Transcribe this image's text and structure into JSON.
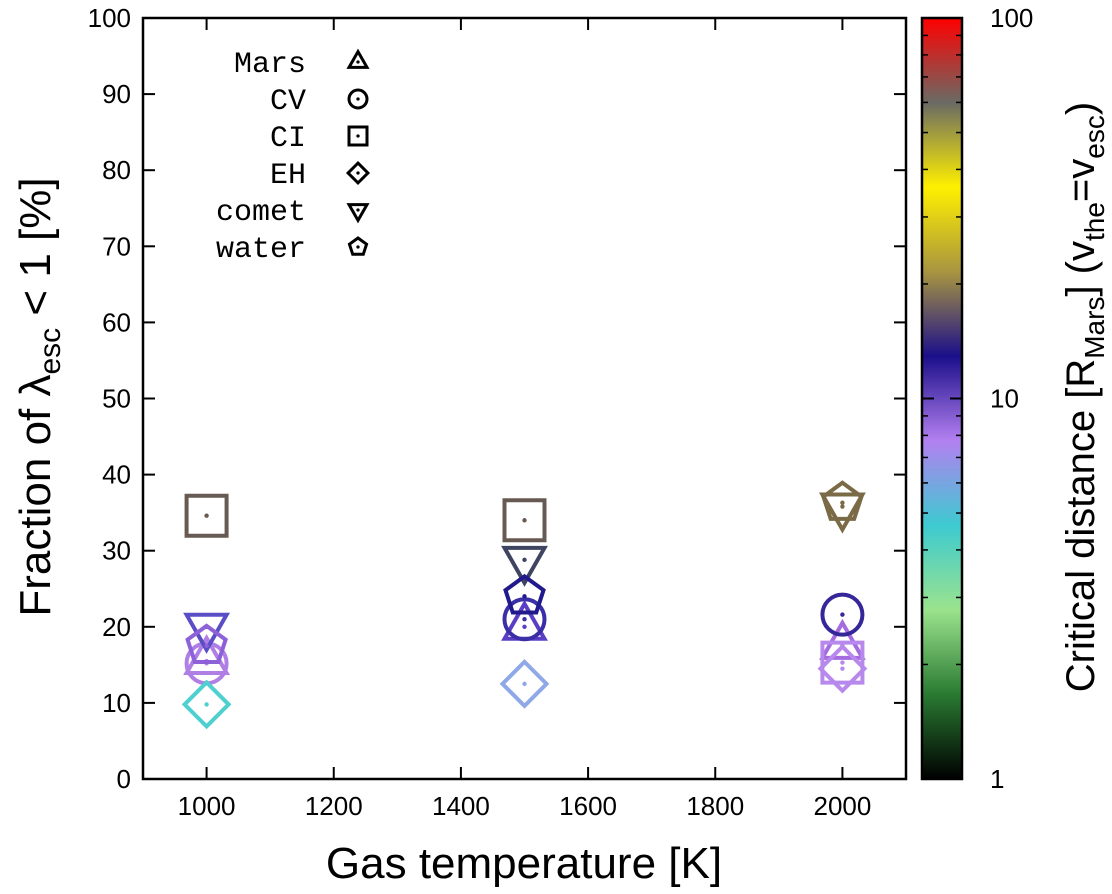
{
  "chart_data": {
    "type": "scatter",
    "xlabel": "Gas temperature [K]",
    "ylabel": {
      "main": "Fraction of ",
      "symbol": "λ",
      "sub": "esc",
      "tail": " < 1 [%]"
    },
    "xlim": [
      900,
      2100
    ],
    "ylim": [
      0,
      100
    ],
    "xticks": [
      "1000",
      "1200",
      "1400",
      "1600",
      "1800",
      "2000"
    ],
    "yticks": [
      "0",
      "10",
      "20",
      "30",
      "40",
      "50",
      "60",
      "70",
      "80",
      "90",
      "100"
    ],
    "grid": false,
    "legend_position": "top-left",
    "series": [
      {
        "name": "Mars",
        "marker": "triangle-up",
        "points": [
          {
            "x": 1000,
            "y": 15.5,
            "color": "#b07fe6"
          },
          {
            "x": 1500,
            "y": 20.0,
            "color": "#5a3fc4"
          },
          {
            "x": 2000,
            "y": 17.5,
            "color": "#a56be0"
          }
        ]
      },
      {
        "name": "CV",
        "marker": "circle",
        "points": [
          {
            "x": 1000,
            "y": 15.2,
            "color": "#b07fe6"
          },
          {
            "x": 1500,
            "y": 21.0,
            "color": "#3a2fa6"
          },
          {
            "x": 2000,
            "y": 21.6,
            "color": "#35279a"
          }
        ]
      },
      {
        "name": "CI",
        "marker": "square",
        "points": [
          {
            "x": 1000,
            "y": 34.6,
            "color": "#675a52"
          },
          {
            "x": 1500,
            "y": 34.0,
            "color": "#675a52"
          },
          {
            "x": 2000,
            "y": 15.3,
            "color": "#b889ec"
          }
        ]
      },
      {
        "name": "EH",
        "marker": "diamond",
        "points": [
          {
            "x": 1000,
            "y": 9.8,
            "color": "#4fd0d0"
          },
          {
            "x": 1500,
            "y": 12.5,
            "color": "#8fa8e8"
          },
          {
            "x": 2000,
            "y": 14.5,
            "color": "#b889ec"
          }
        ]
      },
      {
        "name": "comet",
        "marker": "triangle-down",
        "points": [
          {
            "x": 1000,
            "y": 20.0,
            "color": "#5a4ec6"
          },
          {
            "x": 1500,
            "y": 28.8,
            "color": "#3f4560"
          },
          {
            "x": 2000,
            "y": 35.8,
            "color": "#7a6a45"
          }
        ]
      },
      {
        "name": "water",
        "marker": "pentagon",
        "points": [
          {
            "x": 1000,
            "y": 17.5,
            "color": "#8d62d8"
          },
          {
            "x": 1500,
            "y": 24.0,
            "color": "#211a8c"
          },
          {
            "x": 2000,
            "y": 36.3,
            "color": "#7a6a45"
          }
        ]
      }
    ],
    "colorbar": {
      "label": {
        "main": "Critical distance [R",
        "sub1": "Mars",
        "mid": "] (v",
        "sub2": "the",
        "eq": "=v",
        "sub3": "esc",
        "tail": ")"
      },
      "scale": "log",
      "range": [
        1,
        100
      ],
      "ticks": [
        "1",
        "10",
        "100"
      ],
      "gradient": [
        "#000000",
        "#2a7a32",
        "#9be38d",
        "#3dcad0",
        "#b380f0",
        "#1b0f8a",
        "#a89540",
        "#fff000",
        "#6a6a64",
        "#ff0000"
      ]
    }
  }
}
